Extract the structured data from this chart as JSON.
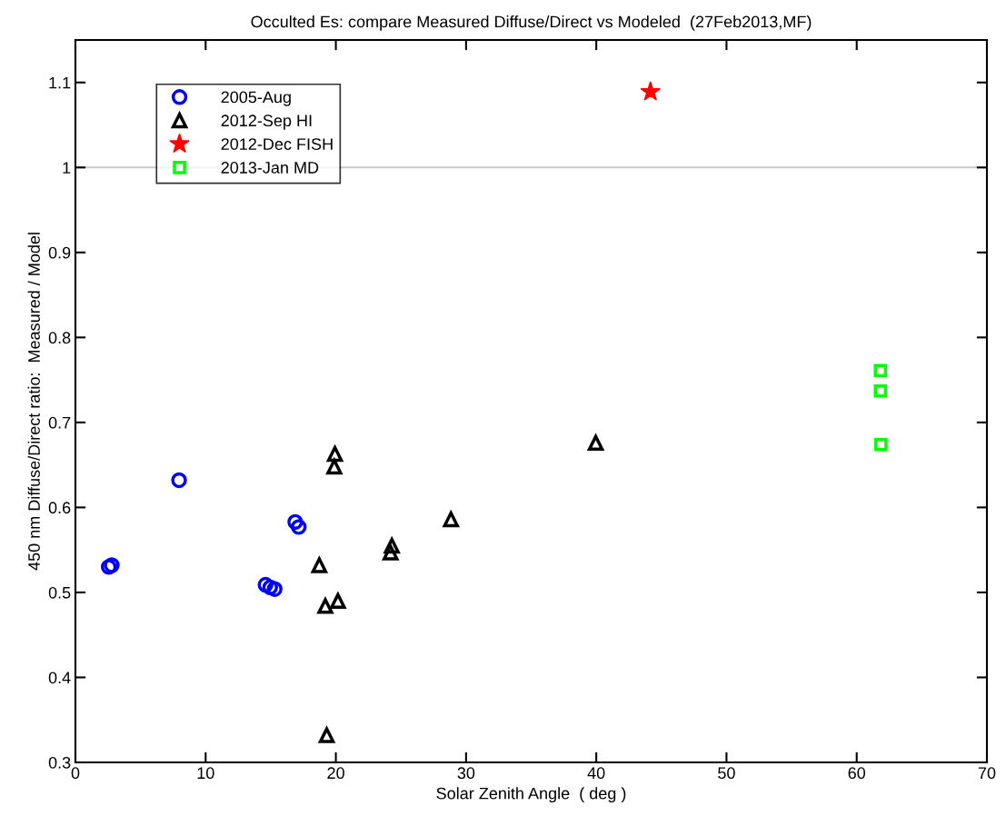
{
  "chart_data": {
    "type": "scatter",
    "title": "Occulted Es: compare Measured Diffuse/Direct vs Modeled  (27Feb2013,MF)",
    "xlabel": "Solar Zenith Angle  ( deg )",
    "ylabel": "450 nm Diffuse/Direct ratio:  Measured / Model",
    "xlim": [
      0,
      70
    ],
    "xticks": [
      0,
      10,
      20,
      30,
      40,
      50,
      60,
      70
    ],
    "ylim": [
      0.3,
      1.15
    ],
    "yticks": [
      0.3,
      0.4,
      0.5,
      0.6,
      0.7,
      0.8,
      0.9,
      1,
      1.1
    ],
    "grid": false,
    "legend": "top left",
    "ref_lines": [
      {
        "axis": "y",
        "value": 1,
        "label": null,
        "color": "#c8c8c8"
      }
    ],
    "series": [
      {
        "name": "2005-Aug",
        "color": "#0000ff",
        "marker": "circle",
        "x": [
          2.56,
          2.79,
          7.96,
          16.88,
          17.15,
          14.6,
          14.96,
          15.3
        ],
        "values": [
          0.53,
          0.532,
          0.632,
          0.583,
          0.577,
          0.509,
          0.506,
          0.504
        ]
      },
      {
        "name": "2012-Sep HI",
        "color": "#000000",
        "marker": "triangle",
        "x": [
          19.93,
          19.88,
          18.73,
          19.19,
          20.16,
          19.3,
          24.3,
          24.2,
          39.96,
          28.84
        ],
        "values": [
          0.663,
          0.648,
          0.532,
          0.484,
          0.49,
          0.332,
          0.555,
          0.547,
          0.676,
          0.586
        ]
      },
      {
        "name": "2012-Dec FISH",
        "color": "#ff0000",
        "marker": "star",
        "x": [
          44.16
        ],
        "values": [
          1.089
        ]
      },
      {
        "name": "2013-Jan MD",
        "color": "#00ff00",
        "marker": "square",
        "x": [
          61.82,
          61.82,
          61.86
        ],
        "values": [
          0.761,
          0.737,
          0.674
        ]
      }
    ]
  }
}
